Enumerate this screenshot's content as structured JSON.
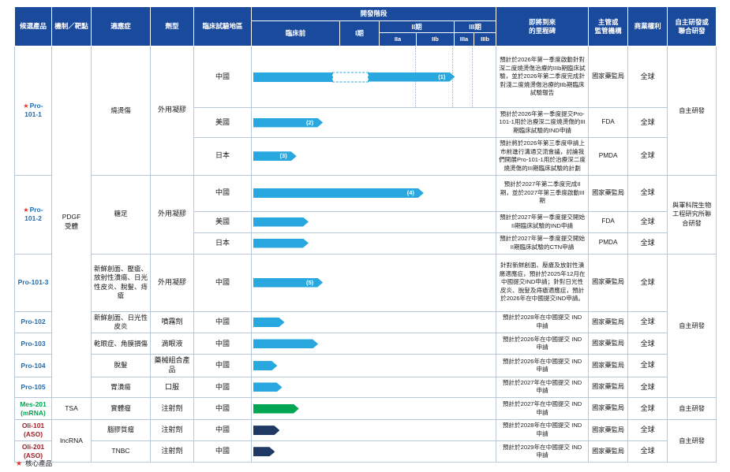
{
  "palette": {
    "header_bg": "#1a4a9c",
    "grid_border": "#b9c7db",
    "product_blue": "#1b6cb5",
    "mes_green": "#00a651",
    "oli_red": "#a31d22",
    "bar_blue": "#29a8e0",
    "bar_green": "#00a651",
    "bar_navy": "#1f3864",
    "star_red": "#e8312a"
  },
  "header": {
    "candidate": "候選產品",
    "mechanism": "機制／靶點",
    "indication": "適應症",
    "form": "劑型",
    "region": "臨床試驗地區",
    "stage_title": "開發階段",
    "stage_preclinical": "臨床前",
    "stage_p1": "I期",
    "stage_p2": "II期",
    "stage_p3": "III期",
    "stage_p2a": "IIa",
    "stage_p2b": "IIb",
    "stage_p3a": "IIIa",
    "stage_p3b": "IIIb",
    "milestone": "即將到來\n的里程碑",
    "authority": "主管或\n監管機構",
    "rights": "商業權利",
    "development": "自主研發或\n聯合研發"
  },
  "mechanisms": {
    "pdgf": "PDGF\n受體",
    "tsa": "TSA",
    "lncrna": "lncRNA"
  },
  "products": {
    "p1011": {
      "star": "★",
      "name": "Pro-101-1",
      "indication": "燒燙傷",
      "form": "外用凝膠",
      "development": "自主研發",
      "cn": {
        "region": "中國",
        "milestone": "預計於2026年第一季度啟動針對深二度燒燙傷治療的IIIb期臨床試驗，並於2026年第二季度完成針對淺二度燒燙傷治療的IIb期臨床試驗報告",
        "authority": "國家藥監局",
        "rights": "全球"
      },
      "us": {
        "region": "美國",
        "milestone": "預計於2026年第一季度提交Pro-101-1用於治療深二度燒燙傷的III期臨床試驗的IND申請",
        "authority": "FDA",
        "rights": "全球"
      },
      "jp": {
        "region": "日本",
        "milestone": "預計將於2026年第三季度申請上市前進行溝通交流會議，討論我們開展Pro-101-1用於治療深二度燒燙傷的III期臨床試驗的計劃",
        "authority": "PMDA",
        "rights": "全球"
      }
    },
    "p1012": {
      "star": "★",
      "name": "Pro-101-2",
      "indication": "糖足",
      "form": "外用凝膠",
      "development": "與軍科院生物工程研究所聯合研發",
      "cn": {
        "region": "中國",
        "milestone": "預計於2027年第二季度完成II期，並於2027年第三季度啟動III期",
        "authority": "國家藥監局",
        "rights": "全球"
      },
      "us": {
        "region": "美國",
        "milestone": "預計於2027年第一季度提交開始II期臨床試驗的IND申請",
        "authority": "FDA",
        "rights": "全球"
      },
      "jp": {
        "region": "日本",
        "milestone": "預計於2027年第一季度提交開始II期臨床試驗的CTN申請",
        "authority": "PMDA",
        "rights": "全球"
      }
    },
    "p1013": {
      "name": "Pro-101-3",
      "indication": "新鮮創面、壓瘡、放射性潰瘍、日光性皮炎、脫髮、痔瘡",
      "form": "外用凝膠",
      "development": "自主研發",
      "cn": {
        "region": "中國",
        "milestone": "針對新鮮創面、壓瘡及放射性潰瘍適應症，預計於2025年12月在中國提交IND申請；針對日光性皮炎、脫髮及痔瘡適應症，預計於2026年在中國提交IND申請。",
        "authority": "國家藥監局",
        "rights": "全球"
      }
    },
    "p102": {
      "name": "Pro-102",
      "indication": "新鮮創面、日光性皮炎",
      "form": "噴霧劑",
      "cn": {
        "region": "中國",
        "milestone": "預計於2028年在中國提交 IND 申請",
        "authority": "國家藥監局",
        "rights": "全球"
      }
    },
    "p103": {
      "name": "Pro-103",
      "indication": "乾眼症、角膜損傷",
      "form": "滴眼液",
      "cn": {
        "region": "中國",
        "milestone": "預計於2026年在中國提交 IND 申請",
        "authority": "國家藥監局",
        "rights": "全球"
      }
    },
    "p104": {
      "name": "Pro-104",
      "indication": "脫髮",
      "form": "藥械組合產品",
      "cn": {
        "region": "中國",
        "milestone": "預計於2026年在中國提交 IND 申請",
        "authority": "國家藥監局",
        "rights": "全球"
      }
    },
    "p105": {
      "name": "Pro-105",
      "indication": "胃潰瘍",
      "form": "口服",
      "cn": {
        "region": "中國",
        "milestone": "預計於2027年在中國提交 IND 申請",
        "authority": "國家藥監局",
        "rights": "全球"
      }
    },
    "mes201": {
      "name": "Mes-201\n(mRNA)",
      "indication": "實體瘤",
      "form": "注射劑",
      "development": "自主研發",
      "cn": {
        "region": "中國",
        "milestone": "預計於2027年在中國提交 IND 申請",
        "authority": "國家藥監局",
        "rights": "全球"
      }
    },
    "oli101": {
      "name": "Oli-101\n(ASO)",
      "indication": "腦膠質瘤",
      "form": "注射劑",
      "development": "自主研發",
      "cn": {
        "region": "中國",
        "milestone": "預計於2028年在中國提交 IND 申請",
        "authority": "國家藥監局",
        "rights": "全球"
      }
    },
    "oli201": {
      "name": "Oli-201\n(ASO)",
      "indication": "TNBC",
      "form": "注射劑",
      "cn": {
        "region": "中國",
        "milestone": "預計於2029年在中國提交 IND 申請",
        "authority": "國家藥監局",
        "rights": "全球"
      }
    }
  },
  "footer": {
    "star": "★",
    "label": "核心產品"
  },
  "chart_data": {
    "type": "bar",
    "title": "開發階段",
    "stages": [
      "臨床前",
      "I期",
      "IIa",
      "IIb",
      "IIIa",
      "IIIb"
    ],
    "stage_boundaries_pct": [
      0,
      36,
      52,
      67.5,
      83,
      91,
      100
    ],
    "unit": "percent of development-stage axis reached",
    "bars": [
      {
        "product": "Pro-101-1",
        "region": "中國",
        "pct": 84,
        "label": "(1)",
        "color": "#29a8e0",
        "segments": {
          "solid1": 33,
          "dashed": 15,
          "solid2": 36
        }
      },
      {
        "product": "Pro-101-1",
        "region": "美國",
        "pct": 29,
        "label": "(2)",
        "color": "#29a8e0"
      },
      {
        "product": "Pro-101-1",
        "region": "日本",
        "pct": 18,
        "label": "(3)",
        "color": "#29a8e0"
      },
      {
        "product": "Pro-101-2",
        "region": "中國",
        "pct": 71,
        "label": "(4)",
        "color": "#29a8e0"
      },
      {
        "product": "Pro-101-2",
        "region": "美國",
        "pct": 23,
        "color": "#29a8e0"
      },
      {
        "product": "Pro-101-2",
        "region": "日本",
        "pct": 23,
        "color": "#29a8e0"
      },
      {
        "product": "Pro-101-3",
        "region": "中國",
        "pct": 29,
        "label": "(5)",
        "color": "#29a8e0"
      },
      {
        "product": "Pro-102",
        "region": "中國",
        "pct": 13,
        "color": "#29a8e0"
      },
      {
        "product": "Pro-103",
        "region": "中國",
        "pct": 27,
        "color": "#29a8e0"
      },
      {
        "product": "Pro-104",
        "region": "中國",
        "pct": 10,
        "color": "#29a8e0"
      },
      {
        "product": "Pro-105",
        "region": "中國",
        "pct": 12,
        "color": "#29a8e0"
      },
      {
        "product": "Mes-201",
        "region": "中國",
        "pct": 19,
        "color": "#00a651"
      },
      {
        "product": "Oli-101",
        "region": "中國",
        "pct": 11,
        "color": "#1f3864"
      },
      {
        "product": "Oli-201",
        "region": "中國",
        "pct": 9,
        "color": "#1f3864"
      }
    ]
  }
}
